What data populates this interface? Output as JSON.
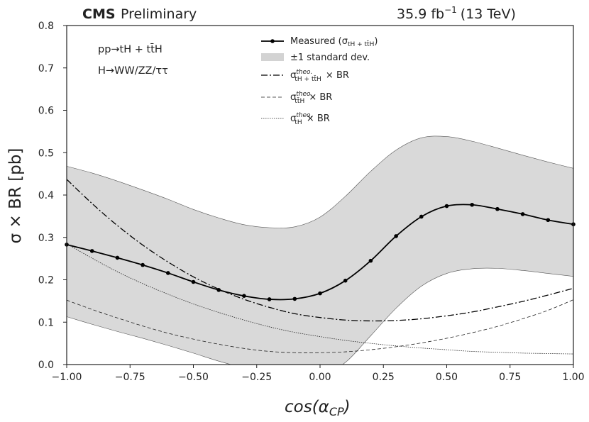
{
  "chart_data": {
    "type": "line",
    "header": {
      "experiment": "CMS",
      "status": "Preliminary",
      "lumi": "35.9 fb",
      "lumi_exp": "−1",
      "energy": "(13 TeV)"
    },
    "annotations": [
      "pp→tH + tt̄H",
      "H→WW/ZZ/ττ"
    ],
    "xlabel": "cos(α",
    "xlabel_sub": "CP",
    "xlabel_close": ")",
    "ylabel": "σ × BR [pb]",
    "xlim": [
      -1.0,
      1.0
    ],
    "ylim": [
      0.0,
      0.8
    ],
    "xticks": [
      -1.0,
      -0.75,
      -0.5,
      -0.25,
      0.0,
      0.25,
      0.5,
      0.75,
      1.0
    ],
    "xtick_labels": [
      "−1.00",
      "−0.75",
      "−0.50",
      "−0.25",
      "0.00",
      "0.25",
      "0.50",
      "0.75",
      "1.00"
    ],
    "yticks": [
      0.0,
      0.1,
      0.2,
      0.3,
      0.4,
      0.5,
      0.6,
      0.7,
      0.8
    ],
    "ytick_labels": [
      "0.0",
      "0.1",
      "0.2",
      "0.3",
      "0.4",
      "0.5",
      "0.6",
      "0.7",
      "0.8"
    ],
    "grid": false,
    "legend_position": "top-center",
    "legend": [
      {
        "key": "measured",
        "label": "Measured (σ",
        "sub": "tH + tt̄H",
        "tail": ")"
      },
      {
        "key": "band",
        "label": "±1 standard dev."
      },
      {
        "key": "theo_sum",
        "label": "σ",
        "sup": "theo.",
        "sub": "tH + tt̄H",
        "tail": " × BR"
      },
      {
        "key": "theo_tth",
        "label": "σ",
        "sup": "theo.",
        "sub": "tt̄H",
        "tail": " × BR"
      },
      {
        "key": "theo_th",
        "label": "σ",
        "sup": "theo.",
        "sub": "tH",
        "tail": " × BR"
      }
    ],
    "x": [
      -1.0,
      -0.9,
      -0.8,
      -0.7,
      -0.6,
      -0.5,
      -0.4,
      -0.3,
      -0.2,
      -0.1,
      0.0,
      0.1,
      0.2,
      0.3,
      0.4,
      0.5,
      0.6,
      0.7,
      0.8,
      0.9,
      1.0
    ],
    "series": [
      {
        "key": "measured",
        "values": [
          0.283,
          0.268,
          0.252,
          0.235,
          0.216,
          0.195,
          0.176,
          0.162,
          0.154,
          0.155,
          0.168,
          0.198,
          0.245,
          0.303,
          0.349,
          0.374,
          0.377,
          0.367,
          0.355,
          0.341,
          0.331
        ]
      },
      {
        "key": "theo_sum",
        "values": [
          0.437,
          0.38,
          0.328,
          0.282,
          0.242,
          0.207,
          0.178,
          0.154,
          0.135,
          0.12,
          0.111,
          0.105,
          0.103,
          0.104,
          0.108,
          0.115,
          0.124,
          0.136,
          0.149,
          0.164,
          0.18
        ]
      },
      {
        "key": "theo_tth",
        "values": [
          0.152,
          0.13,
          0.11,
          0.091,
          0.074,
          0.06,
          0.048,
          0.038,
          0.031,
          0.028,
          0.028,
          0.03,
          0.035,
          0.042,
          0.051,
          0.062,
          0.075,
          0.09,
          0.108,
          0.128,
          0.153
        ]
      },
      {
        "key": "theo_th",
        "values": [
          0.285,
          0.251,
          0.219,
          0.191,
          0.166,
          0.143,
          0.123,
          0.105,
          0.089,
          0.076,
          0.066,
          0.057,
          0.05,
          0.044,
          0.039,
          0.035,
          0.031,
          0.029,
          0.027,
          0.026,
          0.025
        ]
      }
    ],
    "band": {
      "key": "band",
      "lower": [
        0.113,
        0.095,
        0.078,
        0.062,
        0.045,
        0.027,
        0.008,
        -0.008,
        -0.022,
        -0.03,
        -0.028,
        0.005,
        0.068,
        0.133,
        0.185,
        0.215,
        0.226,
        0.227,
        0.222,
        0.215,
        0.208
      ],
      "upper": [
        0.468,
        0.452,
        0.433,
        0.412,
        0.39,
        0.366,
        0.346,
        0.33,
        0.323,
        0.325,
        0.348,
        0.397,
        0.456,
        0.506,
        0.535,
        0.538,
        0.527,
        0.511,
        0.494,
        0.478,
        0.463
      ]
    }
  }
}
